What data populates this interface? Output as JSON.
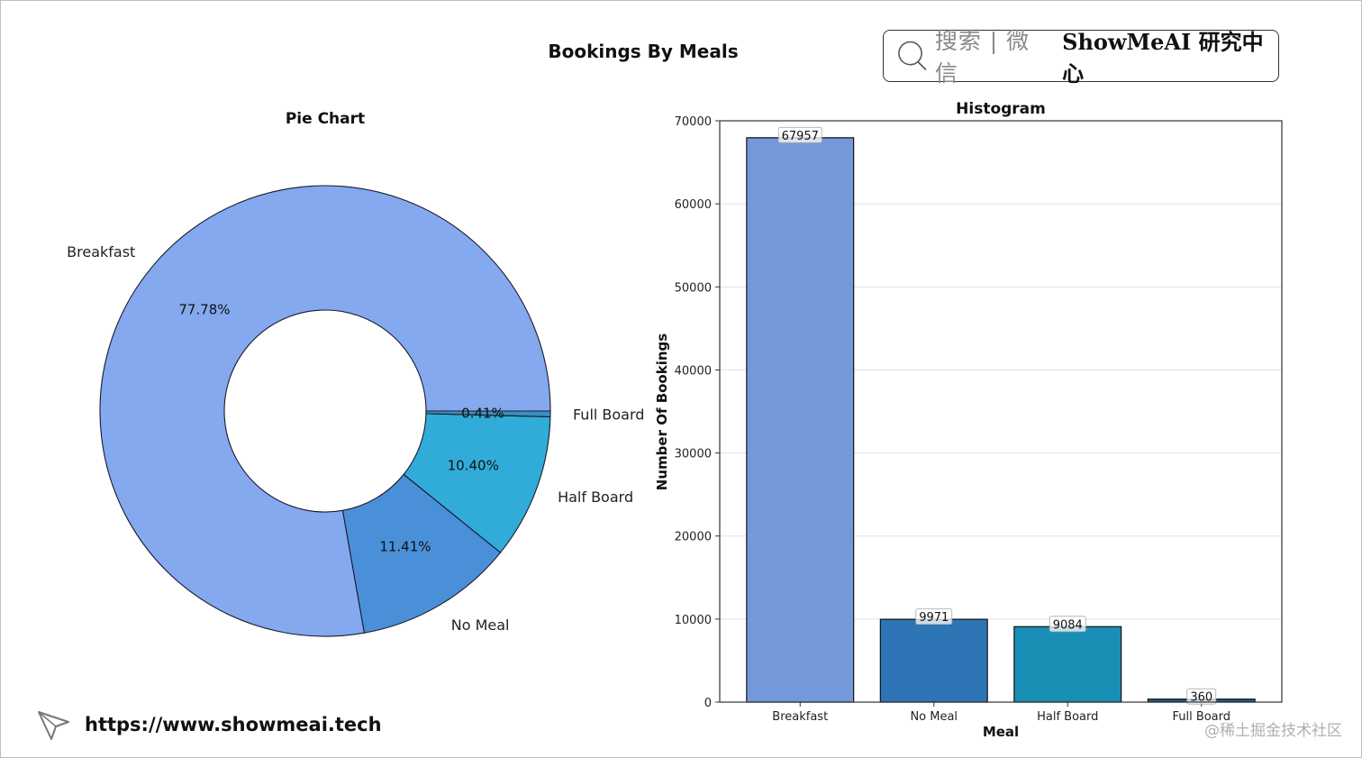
{
  "suptitle": "Bookings By Meals",
  "brand": {
    "search_text": "搜索 | 微信",
    "name": "ShowMeAI 研究中心"
  },
  "footer": {
    "url": "https://www.showmeai.tech",
    "watermark": "@稀土掘金技术社区"
  },
  "colors": {
    "pie": [
      "#84a9ee",
      "#4a90d9",
      "#31acd8",
      "#3a8fbd"
    ],
    "bars": [
      "#7399db",
      "#2e75b6",
      "#1a8fb5",
      "#1f5f82"
    ]
  },
  "chart_data": [
    {
      "type": "pie",
      "title": "Pie Chart",
      "donut": true,
      "labels": [
        "Breakfast",
        "No Meal",
        "Half Board",
        "Full Board"
      ],
      "values": [
        77.78,
        11.41,
        10.4,
        0.41
      ],
      "value_labels": [
        "77.78%",
        "11.41%",
        "10.40%",
        "0.41%"
      ]
    },
    {
      "type": "bar",
      "title": "Histogram",
      "categories": [
        "Breakfast",
        "No Meal",
        "Half Board",
        "Full Board"
      ],
      "values": [
        67957,
        9971,
        9084,
        360
      ],
      "value_labels": [
        "67957",
        "9971",
        "9084",
        "360"
      ],
      "xlabel": "Meal",
      "ylabel": "Number Of Bookings",
      "ylim": [
        0,
        70000
      ],
      "yticks": [
        0,
        10000,
        20000,
        30000,
        40000,
        50000,
        60000,
        70000
      ],
      "ytick_labels": [
        "0",
        "10000",
        "20000",
        "30000",
        "40000",
        "50000",
        "60000",
        "70000"
      ],
      "grid": "horizontal"
    }
  ]
}
